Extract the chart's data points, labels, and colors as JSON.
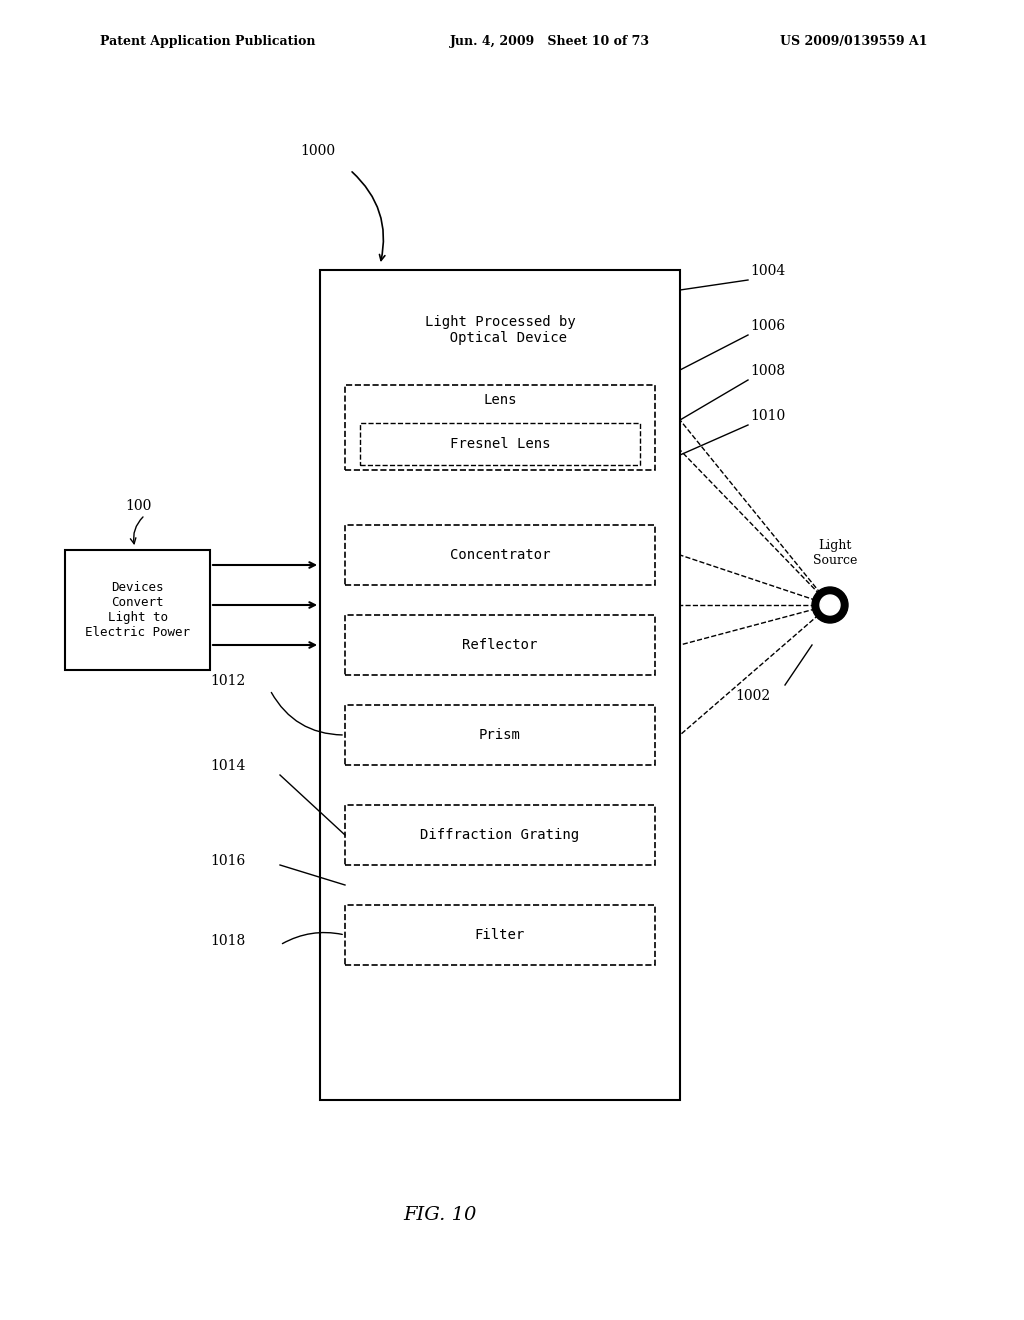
{
  "bg_color": "#ffffff",
  "header_left": "Patent Application Publication",
  "header_mid": "Jun. 4, 2009   Sheet 10 of 73",
  "header_right": "US 2009/0139559 A1",
  "fig_label": "FIG. 10",
  "label_1000": "1000",
  "label_100": "100",
  "label_1002": "1002",
  "label_1004": "1004",
  "label_1006": "1006",
  "label_1008": "1008",
  "label_1010": "1010",
  "label_1012": "1012",
  "label_1014": "1014",
  "label_1016": "1016",
  "label_1018": "1018",
  "outer_box_title": "Light Processed by\n  Optical Device",
  "device_box_text": "Devices\nConvert\nLight to\nElectric Power",
  "light_source_text": "Light\nSource",
  "inner_boxes": [
    "Lens",
    "Fresnel Lens",
    "Concentrator",
    "Reflector",
    "Prism",
    "Diffraction Grating",
    "Filter"
  ]
}
